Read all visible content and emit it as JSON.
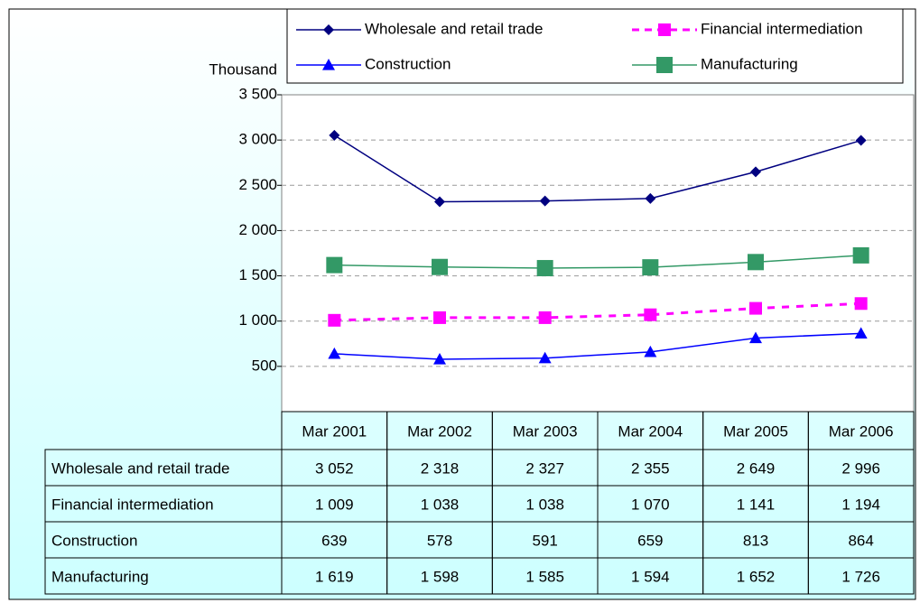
{
  "chart_data": {
    "type": "line",
    "y_label": "Thousand",
    "categories": [
      "Mar 2001",
      "Mar 2002",
      "Mar 2003",
      "Mar 2004",
      "Mar 2005",
      "Mar 2006"
    ],
    "series": [
      {
        "name": "Wholesale and retail trade",
        "color": "#000080",
        "marker": "diamond",
        "dash": false,
        "values": [
          3052,
          2318,
          2327,
          2355,
          2649,
          2996
        ],
        "value_labels": [
          "3 052",
          "2 318",
          "2 327",
          "2 355",
          "2 649",
          "2 996"
        ]
      },
      {
        "name": "Financial intermediation",
        "color": "#ff00ff",
        "marker": "square",
        "dash": true,
        "values": [
          1009,
          1038,
          1038,
          1070,
          1141,
          1194
        ],
        "value_labels": [
          "1 009",
          "1 038",
          "1 038",
          "1 070",
          "1 141",
          "1 194"
        ]
      },
      {
        "name": "Construction",
        "color": "#0000ff",
        "marker": "triangle",
        "dash": false,
        "values": [
          639,
          578,
          591,
          659,
          813,
          864
        ],
        "value_labels": [
          "639",
          "578",
          "591",
          "659",
          "813",
          "864"
        ]
      },
      {
        "name": "Manufacturing",
        "color": "#339966",
        "marker": "square",
        "dash": false,
        "values": [
          1619,
          1598,
          1585,
          1594,
          1652,
          1726
        ],
        "value_labels": [
          "1 619",
          "1 598",
          "1 585",
          "1 594",
          "1 652",
          "1 726"
        ]
      }
    ],
    "ylim": [
      0,
      3500
    ],
    "yticks": [
      {
        "value": 500,
        "label": "500"
      },
      {
        "value": 1000,
        "label": "1 000"
      },
      {
        "value": 1500,
        "label": "1 500"
      },
      {
        "value": 2000,
        "label": "2 000"
      },
      {
        "value": 2500,
        "label": "2 500"
      },
      {
        "value": 3000,
        "label": "3 000"
      },
      {
        "value": 3500,
        "label": "3 500"
      }
    ],
    "grid": true
  }
}
